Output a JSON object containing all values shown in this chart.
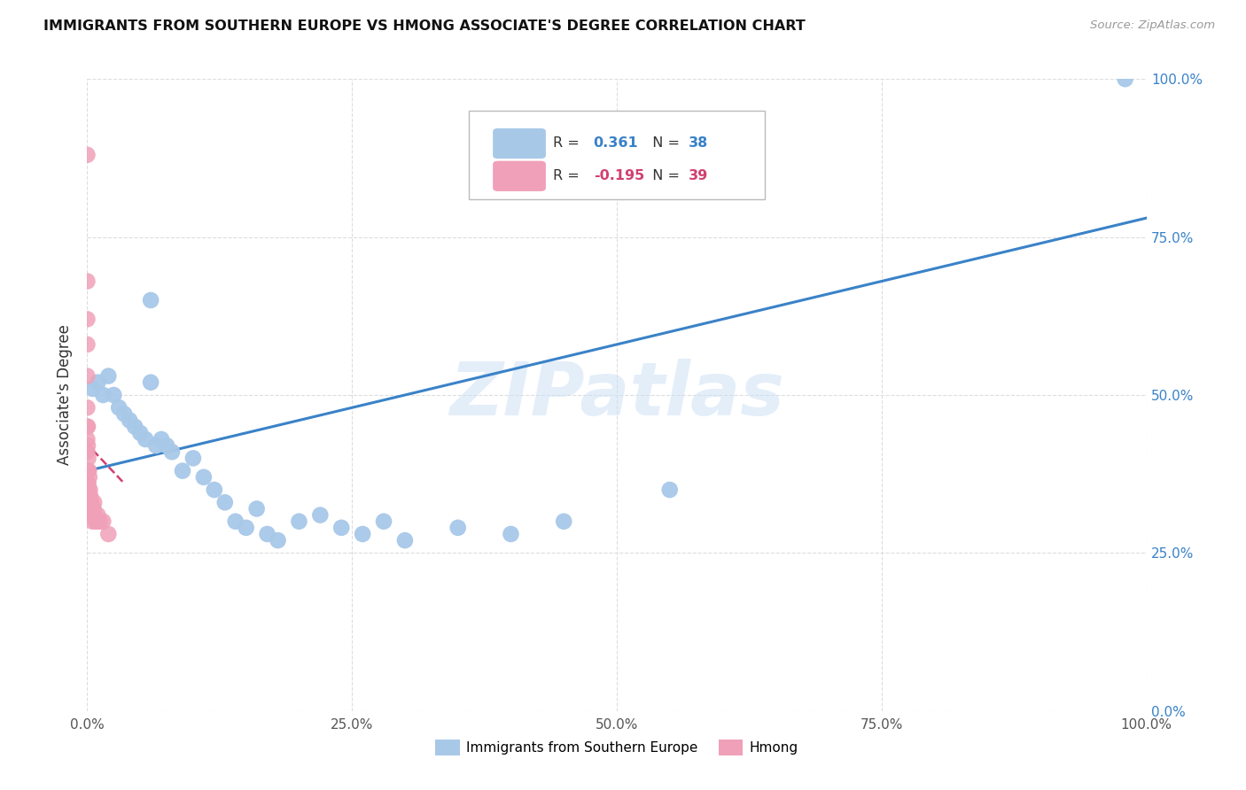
{
  "title": "IMMIGRANTS FROM SOUTHERN EUROPE VS HMONG ASSOCIATE'S DEGREE CORRELATION CHART",
  "source": "Source: ZipAtlas.com",
  "ylabel": "Associate's Degree",
  "legend_label_blue": "Immigrants from Southern Europe",
  "legend_label_pink": "Hmong",
  "blue_color": "#a8c8e8",
  "blue_line_color": "#3a82c8",
  "pink_color": "#f0a0b8",
  "pink_line_color": "#d04070",
  "watermark_text": "ZIPatlas",
  "blue_r": "0.361",
  "blue_n": "38",
  "pink_r": "-0.195",
  "pink_n": "39",
  "blue_x": [
    0.5,
    1.0,
    1.5,
    2.0,
    2.5,
    3.0,
    3.5,
    4.0,
    4.5,
    5.0,
    5.5,
    6.0,
    6.5,
    7.0,
    7.5,
    8.0,
    9.0,
    10.0,
    11.0,
    12.0,
    13.0,
    14.0,
    15.0,
    16.0,
    17.0,
    18.0,
    20.0,
    22.0,
    24.0,
    26.0,
    28.0,
    30.0,
    35.0,
    40.0,
    45.0,
    55.0,
    98.0,
    6.0
  ],
  "blue_y": [
    51,
    52,
    50,
    53,
    50,
    48,
    47,
    46,
    45,
    44,
    43,
    52,
    42,
    43,
    42,
    41,
    38,
    40,
    37,
    35,
    33,
    30,
    29,
    32,
    28,
    27,
    30,
    31,
    29,
    28,
    30,
    27,
    29,
    28,
    30,
    35,
    100,
    65
  ],
  "pink_x": [
    0.0,
    0.0,
    0.0,
    0.0,
    0.0,
    0.0,
    0.0,
    0.0,
    0.0,
    0.0,
    0.0,
    0.0,
    0.05,
    0.05,
    0.1,
    0.1,
    0.1,
    0.1,
    0.15,
    0.15,
    0.2,
    0.2,
    0.25,
    0.3,
    0.3,
    0.35,
    0.4,
    0.5,
    0.5,
    0.55,
    0.6,
    0.65,
    0.7,
    0.8,
    0.9,
    1.0,
    1.2,
    1.5,
    2.0
  ],
  "pink_y": [
    88,
    68,
    62,
    58,
    53,
    48,
    45,
    43,
    41,
    38,
    36,
    32,
    45,
    42,
    40,
    38,
    36,
    33,
    38,
    35,
    37,
    34,
    35,
    34,
    33,
    33,
    33,
    32,
    30,
    31,
    32,
    33,
    31,
    30,
    30,
    31,
    30,
    30,
    28
  ],
  "blue_trendline_x": [
    0,
    100
  ],
  "blue_trendline_y": [
    38,
    78
  ],
  "pink_trendline_x": [
    -1,
    3.5
  ],
  "pink_trendline_y": [
    44,
    36
  ],
  "xlim": [
    0,
    100
  ],
  "ylim": [
    0,
    100
  ],
  "xticks": [
    0,
    25,
    50,
    75,
    100
  ],
  "yticks": [
    0,
    25,
    50,
    75,
    100
  ],
  "xtick_labels": [
    "0.0%",
    "25.0%",
    "50.0%",
    "75.0%",
    "100.0%"
  ],
  "ytick_labels_right": [
    "0.0%",
    "25.0%",
    "50.0%",
    "75.0%",
    "100.0%"
  ]
}
